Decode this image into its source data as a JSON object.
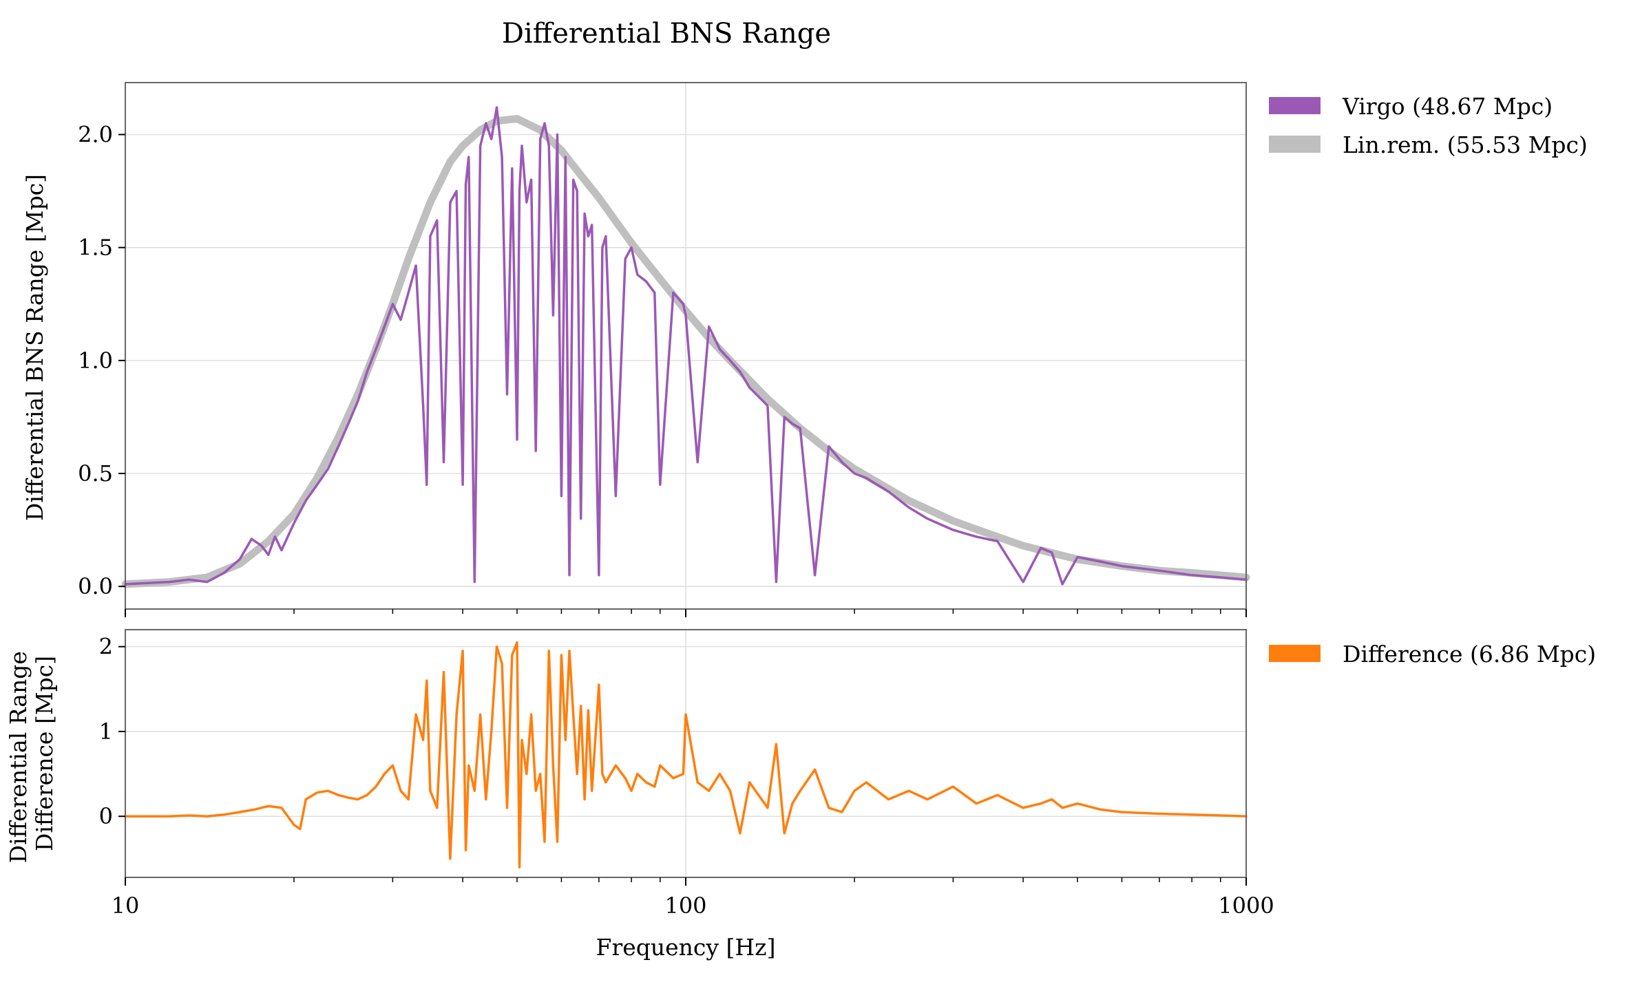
{
  "chart_data": [
    {
      "type": "line",
      "title": "Differential BNS Range",
      "xlabel": "",
      "ylabel": "Differential BNS Range [Mpc]",
      "xscale": "log",
      "xlim": [
        10,
        1000
      ],
      "ylim": [
        -0.1,
        2.23
      ],
      "yticks": [
        0.0,
        0.5,
        1.0,
        1.5,
        2.0
      ],
      "ytick_labels": [
        "0.0",
        "0.5",
        "1.0",
        "1.5",
        "2.0"
      ],
      "grid": true,
      "legend": "outside-right",
      "series": [
        {
          "name": "Virgo (48.67 Mpc)",
          "color": "#9b59b6",
          "x": [
            10,
            12,
            13,
            14,
            15,
            16,
            16.8,
            17.5,
            18,
            18.5,
            19,
            20,
            21,
            22,
            23,
            24,
            25,
            26,
            27,
            28,
            29,
            30,
            31,
            32,
            33,
            34,
            34.5,
            35,
            36,
            37,
            38,
            39,
            40,
            40.5,
            41,
            42,
            43,
            44,
            45,
            46,
            47,
            48,
            49,
            50,
            50.5,
            51,
            52,
            53,
            54,
            55,
            56,
            57,
            58,
            59,
            60,
            61,
            62,
            63,
            64,
            65,
            66,
            67,
            68,
            70,
            71,
            72,
            75,
            78,
            80,
            82,
            85,
            88,
            90,
            95,
            99,
            100,
            105,
            110,
            115,
            120,
            125,
            130,
            140,
            145,
            150,
            155,
            160,
            170,
            180,
            190,
            200,
            210,
            230,
            250,
            270,
            300,
            330,
            360,
            400,
            430,
            450,
            470,
            500,
            550,
            600,
            700,
            800,
            900,
            1000
          ],
          "y": [
            0.01,
            0.02,
            0.03,
            0.02,
            0.06,
            0.12,
            0.21,
            0.18,
            0.14,
            0.22,
            0.16,
            0.28,
            0.38,
            0.45,
            0.52,
            0.62,
            0.72,
            0.82,
            0.95,
            1.05,
            1.15,
            1.25,
            1.18,
            1.3,
            1.42,
            0.8,
            0.45,
            1.55,
            1.62,
            0.55,
            1.7,
            1.75,
            0.45,
            1.78,
            1.9,
            0.02,
            1.95,
            2.05,
            1.98,
            2.12,
            1.9,
            0.85,
            1.85,
            0.65,
            1.75,
            1.95,
            1.7,
            1.8,
            0.6,
            1.98,
            2.05,
            1.95,
            1.2,
            2.0,
            0.4,
            1.9,
            0.05,
            1.8,
            1.75,
            0.3,
            1.65,
            1.55,
            1.6,
            0.05,
            1.5,
            1.55,
            0.4,
            1.45,
            1.5,
            1.38,
            1.35,
            1.3,
            0.45,
            1.3,
            1.25,
            1.2,
            0.55,
            1.15,
            1.05,
            1.0,
            0.95,
            0.88,
            0.8,
            0.02,
            0.75,
            0.72,
            0.7,
            0.05,
            0.62,
            0.55,
            0.5,
            0.48,
            0.42,
            0.35,
            0.3,
            0.25,
            0.22,
            0.2,
            0.02,
            0.17,
            0.15,
            0.01,
            0.13,
            0.11,
            0.09,
            0.07,
            0.05,
            0.04,
            0.03
          ]
        },
        {
          "name": "Lin.rem. (55.53 Mpc)",
          "color": "#bfbfbf",
          "x": [
            10,
            12,
            14,
            16,
            18,
            20,
            22,
            24,
            26,
            28,
            30,
            32,
            35,
            38,
            40,
            43,
            46,
            50,
            55,
            60,
            65,
            70,
            80,
            90,
            100,
            110,
            120,
            140,
            160,
            180,
            200,
            250,
            300,
            350,
            400,
            500,
            600,
            700,
            800,
            1000
          ],
          "y": [
            0.01,
            0.02,
            0.04,
            0.1,
            0.2,
            0.32,
            0.48,
            0.66,
            0.85,
            1.05,
            1.25,
            1.45,
            1.7,
            1.88,
            1.95,
            2.02,
            2.06,
            2.07,
            2.02,
            1.93,
            1.82,
            1.72,
            1.52,
            1.36,
            1.22,
            1.1,
            1.0,
            0.83,
            0.7,
            0.6,
            0.52,
            0.38,
            0.29,
            0.23,
            0.18,
            0.12,
            0.09,
            0.07,
            0.06,
            0.04
          ]
        }
      ]
    },
    {
      "type": "line",
      "title": "",
      "xlabel": "Frequency [Hz]",
      "ylabel": "Differential Range\nDifference [Mpc]",
      "xscale": "log",
      "xlim": [
        10,
        1000
      ],
      "xticks": [
        10,
        100,
        1000
      ],
      "xtick_labels": [
        "10",
        "100",
        "1000"
      ],
      "ylim": [
        -0.72,
        2.2
      ],
      "yticks": [
        0,
        1,
        2
      ],
      "ytick_labels": [
        "0",
        "1",
        "2"
      ],
      "grid": true,
      "legend": "outside-right",
      "series": [
        {
          "name": "Difference (6.86 Mpc)",
          "color": "#ff7f0e",
          "x": [
            10,
            12,
            13,
            14,
            15,
            16,
            17,
            18,
            19,
            20,
            20.5,
            21,
            22,
            23,
            24,
            25,
            26,
            27,
            28,
            29,
            30,
            31,
            32,
            33,
            34,
            34.5,
            35,
            36,
            37,
            38,
            39,
            40,
            40.5,
            41,
            42,
            43,
            44,
            45,
            46,
            47,
            48,
            49,
            50,
            50.5,
            51,
            52,
            53,
            54,
            55,
            56,
            57,
            58,
            59,
            60,
            61,
            62,
            63,
            64,
            65,
            66,
            67,
            68,
            70,
            71,
            72,
            75,
            78,
            80,
            82,
            85,
            88,
            90,
            95,
            99,
            100,
            105,
            110,
            115,
            120,
            125,
            130,
            140,
            145,
            150,
            155,
            160,
            170,
            180,
            190,
            200,
            210,
            230,
            250,
            270,
            300,
            330,
            360,
            400,
            430,
            450,
            470,
            500,
            550,
            600,
            700,
            800,
            900,
            1000
          ],
          "y": [
            0.0,
            0.0,
            0.01,
            0.0,
            0.02,
            0.05,
            0.08,
            0.12,
            0.1,
            -0.1,
            -0.15,
            0.2,
            0.28,
            0.3,
            0.25,
            0.22,
            0.2,
            0.25,
            0.35,
            0.5,
            0.6,
            0.3,
            0.2,
            1.2,
            0.9,
            1.6,
            0.3,
            0.1,
            1.7,
            -0.5,
            1.2,
            1.95,
            -0.4,
            0.6,
            0.3,
            1.2,
            0.2,
            1.0,
            2.0,
            1.8,
            0.1,
            1.9,
            2.05,
            -0.6,
            0.9,
            0.5,
            1.2,
            0.3,
            0.5,
            -0.3,
            1.95,
            0.6,
            -0.3,
            1.9,
            0.9,
            1.95,
            1.2,
            0.5,
            1.3,
            0.2,
            1.25,
            0.3,
            1.55,
            0.5,
            0.4,
            0.6,
            0.45,
            0.3,
            0.5,
            0.4,
            0.35,
            0.6,
            0.45,
            0.5,
            1.2,
            0.4,
            0.3,
            0.5,
            0.3,
            -0.2,
            0.4,
            0.1,
            0.85,
            -0.2,
            0.15,
            0.3,
            0.55,
            0.1,
            0.05,
            0.3,
            0.4,
            0.2,
            0.3,
            0.2,
            0.35,
            0.15,
            0.25,
            0.1,
            0.15,
            0.2,
            0.1,
            0.15,
            0.08,
            0.05,
            0.03,
            0.02,
            0.01,
            0.0
          ]
        }
      ]
    }
  ]
}
